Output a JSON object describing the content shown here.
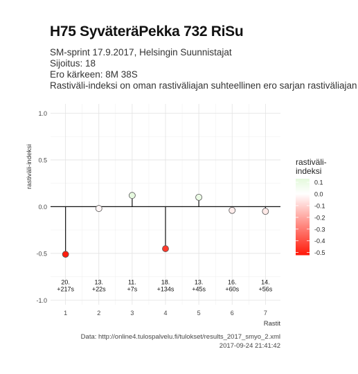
{
  "title": "H75 SyväteräPekka 732 RiSu",
  "subtitle_lines": [
    "SM-sprint 17.9.2017, Helsingin Suunnistajat",
    "Sijoitus: 18",
    "Ero kärkeen: 8M 38S",
    "Rastiväli-indeksi on oman rastiväliajan suhteellinen ero sarjan rastiväliajan kes"
  ],
  "caption_lines": [
    "Data: http://online4.tulospalvelu.fi/tulokset/results_2017_smyo_2.xml",
    "2017-09-24 21:41:42"
  ],
  "chart_data": {
    "type": "scatter",
    "xlabel": "Rastit",
    "ylabel": "rastiväli-indeksi",
    "x": [
      1,
      2,
      3,
      4,
      5,
      6,
      7
    ],
    "y": [
      -0.51,
      -0.02,
      0.12,
      -0.45,
      0.1,
      -0.04,
      -0.05
    ],
    "point_labels": [
      [
        "20.",
        "+217s"
      ],
      [
        "13.",
        "+22s"
      ],
      [
        "11.",
        "+7s"
      ],
      [
        "18.",
        "+134s"
      ],
      [
        "13.",
        "+45s"
      ],
      [
        "16.",
        "+60s"
      ],
      [
        "14.",
        "+56s"
      ]
    ],
    "xticks": [
      "1",
      "2",
      "3",
      "4",
      "5",
      "6",
      "7"
    ],
    "yticks": [
      "1.0",
      "0.5",
      "0.0",
      "-0.5",
      "-1.0"
    ],
    "ytick_values": [
      1.0,
      0.5,
      0.0,
      -0.5,
      -1.0
    ],
    "xlim": [
      0.55,
      7.45
    ],
    "ylim": [
      -1.05,
      1.1
    ],
    "grid": true,
    "legend": {
      "title": "rastiväli-\nindeksi",
      "position": "right",
      "ticks": [
        "0.1",
        "0.0",
        "-0.1",
        "-0.2",
        "-0.3",
        "-0.4",
        "-0.5"
      ],
      "tick_values": [
        0.1,
        0.0,
        -0.1,
        -0.2,
        -0.3,
        -0.4,
        -0.5
      ],
      "range": [
        -0.52,
        0.13
      ],
      "colors": {
        "high": "#e4f9dc",
        "mid": "#ffffff",
        "low": "#ff1a0a"
      }
    }
  }
}
